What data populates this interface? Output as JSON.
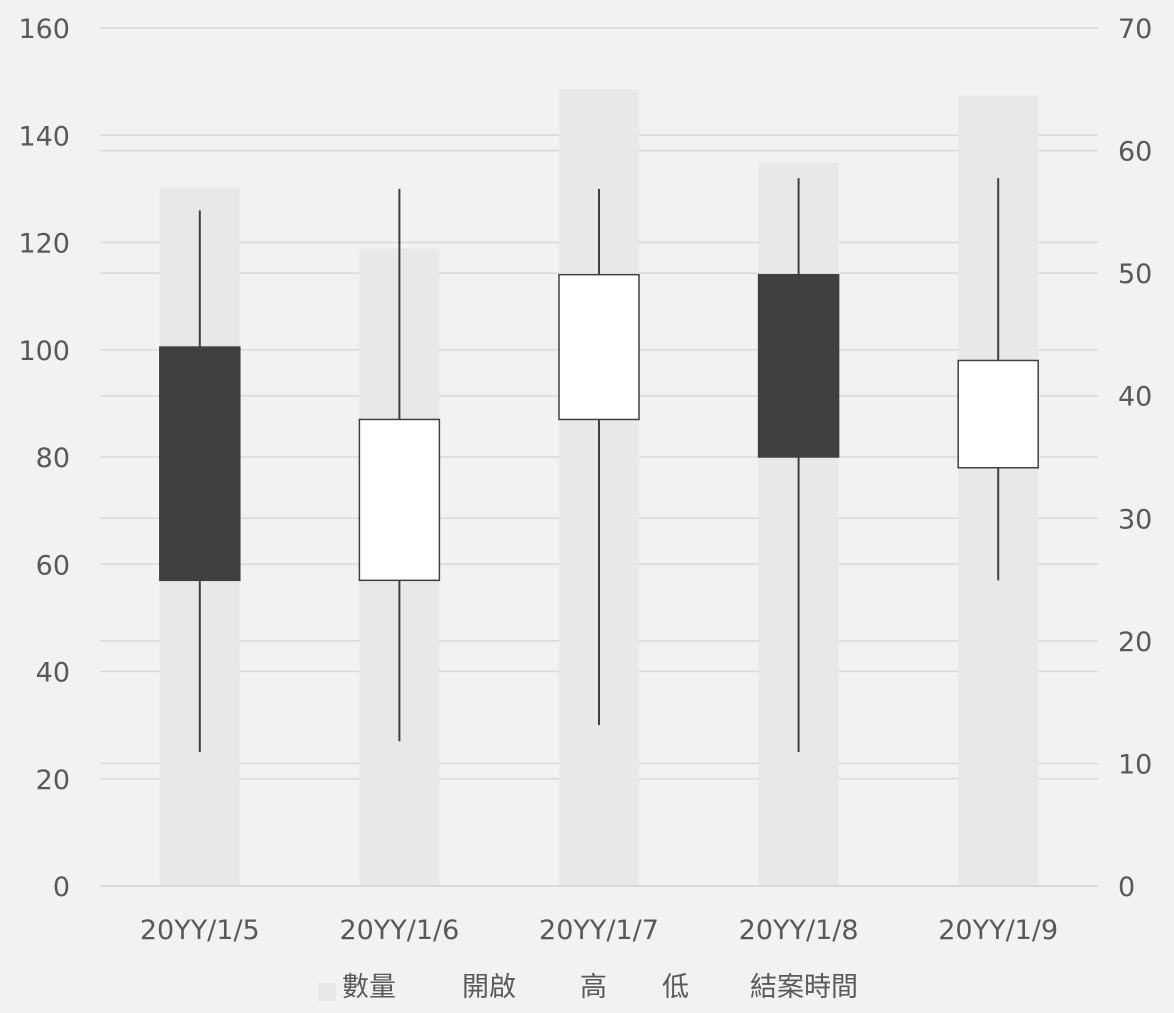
{
  "chart_data": {
    "type": "stock",
    "title": "",
    "categories": [
      "20YY/1/5",
      "20YY/1/6",
      "20YY/1/7",
      "20YY/1/8",
      "20YY/1/9"
    ],
    "volume": {
      "name": "數量",
      "values": [
        57,
        52,
        65,
        59,
        64.5
      ],
      "axis": "secondary",
      "color": "#e9e8e6"
    },
    "ohlc": {
      "open": [
        100.5,
        57,
        87,
        114,
        78
      ],
      "high": [
        126,
        130,
        130,
        132,
        132
      ],
      "low": [
        25,
        27,
        30,
        25,
        57
      ],
      "close": [
        57,
        87,
        114,
        80,
        98
      ],
      "up_color": "#ffffff",
      "down_color": "#404040",
      "line_color": "#404040"
    },
    "y_primary": {
      "min": 0,
      "max": 160,
      "step": 20,
      "ticks": [
        "0",
        "20",
        "40",
        "60",
        "80",
        "100",
        "120",
        "140",
        "160"
      ]
    },
    "y_secondary": {
      "min": 0,
      "max": 70,
      "step": 10,
      "ticks": [
        "0",
        "10",
        "20",
        "30",
        "40",
        "50",
        "60",
        "70"
      ]
    },
    "legend": {
      "position": "bottom",
      "items": [
        "數量",
        "開啟",
        "高",
        "低",
        "結案時間"
      ]
    },
    "gridlines": true,
    "background": "#f2f2f2",
    "grid_color": "#d9d9d9"
  }
}
